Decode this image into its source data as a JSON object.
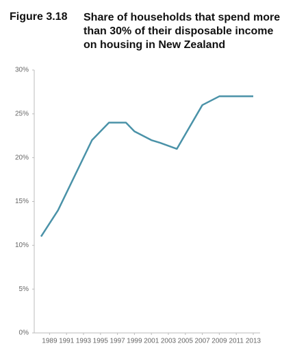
{
  "chart_data": {
    "type": "line",
    "figure_label": "Figure 3.18",
    "title": "Share of households that spend more than 30% of their disposable income on housing in New Zealand",
    "x": [
      1988,
      1990,
      1992,
      1994,
      1996,
      1998,
      1999,
      2001,
      2002,
      2004,
      2007,
      2009,
      2013
    ],
    "series": [
      {
        "color": "#4a92a8",
        "values": [
          11,
          14,
          18,
          22,
          24,
          24,
          23,
          22,
          21.7,
          21,
          26,
          27,
          27
        ]
      }
    ],
    "xlim": [
      1988,
      2013
    ],
    "xticks": [
      1989,
      1991,
      1993,
      1995,
      1997,
      1999,
      2001,
      2003,
      2005,
      2007,
      2009,
      2011,
      2013
    ],
    "ylim": [
      0,
      30
    ],
    "yticks": [
      {
        "value": 0,
        "label": "0%"
      },
      {
        "value": 5,
        "label": "5%"
      },
      {
        "value": 10,
        "label": "10%"
      },
      {
        "value": 15,
        "label": "15%"
      },
      {
        "value": 20,
        "label": "20%"
      },
      {
        "value": 25,
        "label": "25%"
      },
      {
        "value": 30,
        "label": "30%"
      }
    ],
    "grid": false
  }
}
